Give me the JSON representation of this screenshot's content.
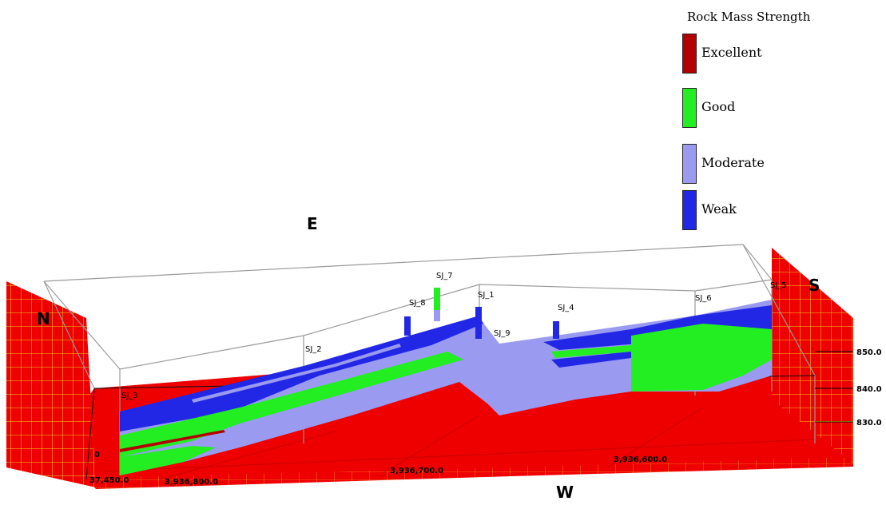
{
  "legend": {
    "title": "Rock Mass Strength",
    "items": [
      {
        "label": "Excellent",
        "color": "#B30000"
      },
      {
        "label": "Good",
        "color": "#22EE22"
      },
      {
        "label": "Moderate",
        "color": "#9A9BF0"
      },
      {
        "label": "Weak",
        "color": "#2227E6"
      }
    ]
  },
  "directions": {
    "east": "E",
    "north": "N",
    "south": "S",
    "west": "W"
  },
  "boreholes": [
    "SJ_3",
    "SJ_2",
    "SJ_8",
    "SJ_7",
    "SJ_1",
    "SJ_9",
    "SJ_4",
    "SJ_6",
    "SJ_5"
  ],
  "elevation_ticks": [
    "850.0",
    "840.0",
    "830.0"
  ],
  "easting_ticks": [
    "37,450.0",
    "3,936,800.0",
    "3,936,700.0",
    "3,936,600.0"
  ],
  "left_tick": "0",
  "colors": {
    "ground": "#EE0000",
    "grid_line": "#F2D21A",
    "ground_line": "#B10000",
    "frame": "#9A9A9A"
  }
}
